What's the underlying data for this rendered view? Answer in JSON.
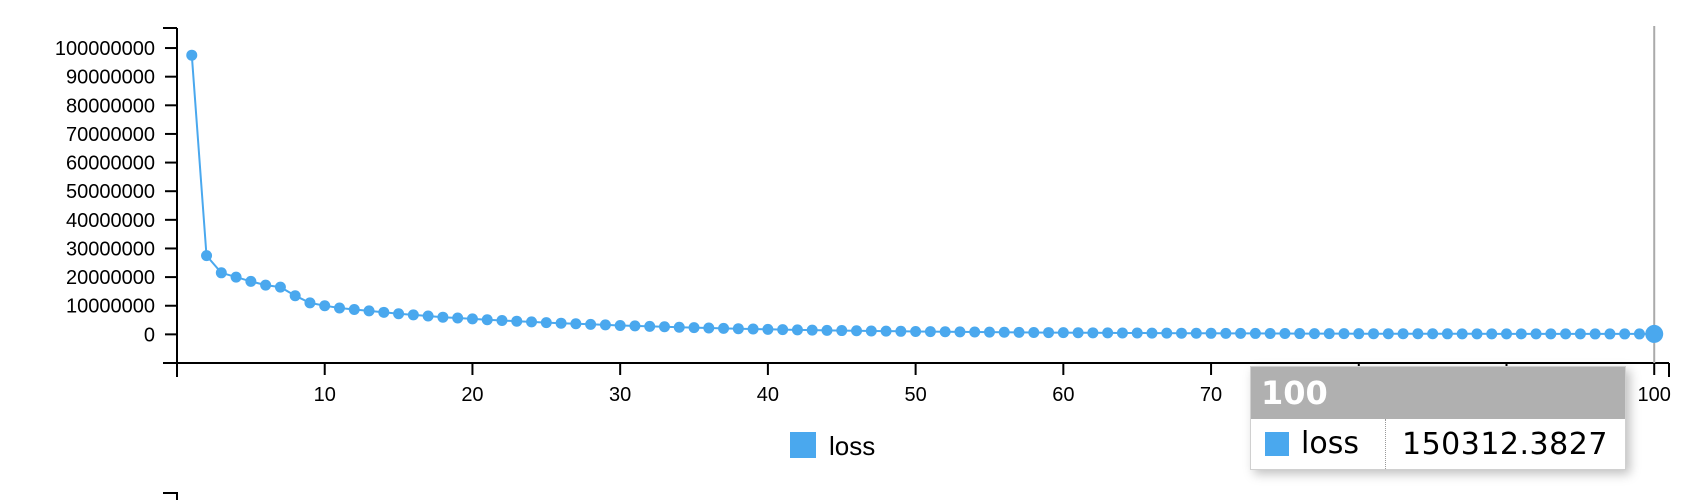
{
  "chart_data": {
    "type": "line",
    "x": [
      1,
      2,
      3,
      4,
      5,
      6,
      7,
      8,
      9,
      10,
      11,
      12,
      13,
      14,
      15,
      16,
      17,
      18,
      19,
      20,
      21,
      22,
      23,
      24,
      25,
      26,
      27,
      28,
      29,
      30,
      31,
      32,
      33,
      34,
      35,
      36,
      37,
      38,
      39,
      40,
      41,
      42,
      43,
      44,
      45,
      46,
      47,
      48,
      49,
      50,
      51,
      52,
      53,
      54,
      55,
      56,
      57,
      58,
      59,
      60,
      61,
      62,
      63,
      64,
      65,
      66,
      67,
      68,
      69,
      70,
      71,
      72,
      73,
      74,
      75,
      76,
      77,
      78,
      79,
      80,
      81,
      82,
      83,
      84,
      85,
      86,
      87,
      88,
      89,
      90,
      91,
      92,
      93,
      94,
      95,
      96,
      97,
      98,
      99,
      100
    ],
    "series": [
      {
        "name": "loss",
        "color": "#4aa8ee",
        "values": [
          97500000,
          27500000,
          21500000,
          20000000,
          18500000,
          17200000,
          16500000,
          13500000,
          11000000,
          10000000,
          9200000,
          8700000,
          8200000,
          7700000,
          7200000,
          6800000,
          6400000,
          6000000,
          5700000,
          5400000,
          5100000,
          4850000,
          4600000,
          4350000,
          4100000,
          3900000,
          3700000,
          3500000,
          3300000,
          3100000,
          2950000,
          2800000,
          2650000,
          2500000,
          2350000,
          2220000,
          2100000,
          1980000,
          1870000,
          1760000,
          1660000,
          1570000,
          1480000,
          1400000,
          1330000,
          1260000,
          1190000,
          1130000,
          1070000,
          1010000,
          960000,
          910000,
          860000,
          820000,
          780000,
          740000,
          700000,
          660000,
          630000,
          600000,
          570000,
          540000,
          510000,
          490000,
          470000,
          450000,
          430000,
          410000,
          390000,
          370000,
          355000,
          340000,
          325000,
          310000,
          297000,
          285000,
          273000,
          262000,
          252000,
          242000,
          233000,
          224000,
          216000,
          208000,
          201000,
          194000,
          188000,
          182000,
          177000,
          172000,
          168000,
          164000,
          161000,
          158000,
          156000,
          154000,
          153000,
          152000,
          151000,
          150312.3827
        ]
      }
    ],
    "y_ticks": [
      "0",
      "10000000",
      "20000000",
      "30000000",
      "40000000",
      "50000000",
      "60000000",
      "70000000",
      "80000000",
      "90000000",
      "100000000"
    ],
    "x_ticks": [
      "10",
      "20",
      "30",
      "40",
      "50",
      "60",
      "70",
      "80",
      "90",
      "100"
    ],
    "ylim": [
      -10000000,
      107000000
    ],
    "xlim": [
      0,
      101
    ],
    "legend": {
      "position": "bottom-center",
      "label": "loss"
    }
  },
  "tooltip": {
    "title": "100",
    "series_label": "loss",
    "value": "150312.3827"
  }
}
